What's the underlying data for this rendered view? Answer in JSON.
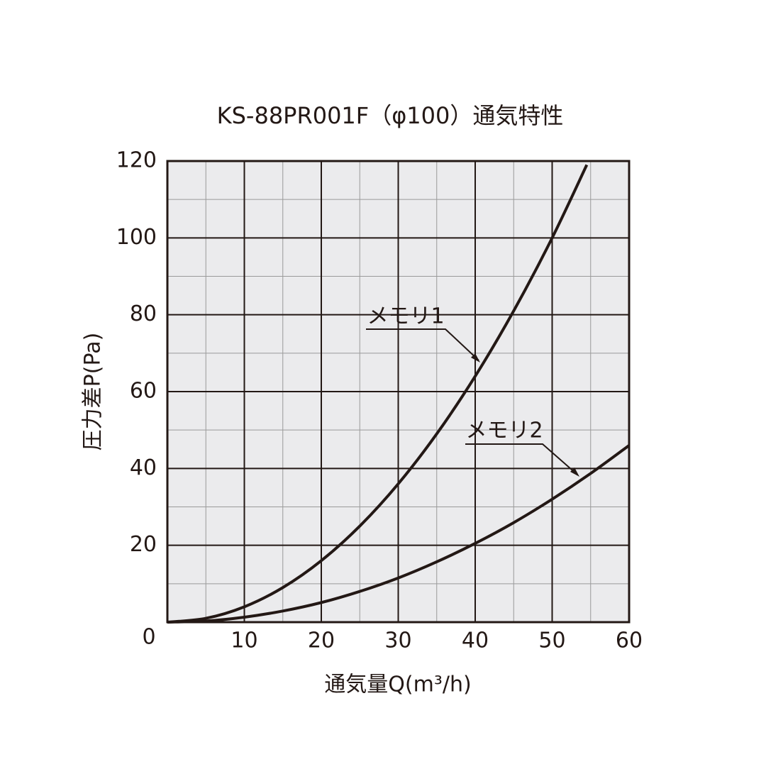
{
  "chart_data": {
    "type": "line",
    "title": "KS-88PR001F（φ100）通気特性",
    "x_label": "通気量Q(m³/h)",
    "y_label": "圧力差P(Pa)",
    "xlim": [
      0,
      60
    ],
    "ylim": [
      0,
      120
    ],
    "xticks": [
      0,
      10,
      20,
      30,
      40,
      50,
      60
    ],
    "yticks": [
      0,
      20,
      40,
      60,
      80,
      100,
      120
    ],
    "minor_xticks": [
      5,
      15,
      25,
      35,
      45,
      55
    ],
    "minor_yticks": [
      10,
      30,
      50,
      70,
      90,
      110
    ],
    "grid": true,
    "series": [
      {
        "name": "メモリ1",
        "color": "#231815",
        "x": [
          0,
          5,
          10,
          15,
          20,
          25,
          30,
          35,
          40,
          45,
          50,
          54.5
        ],
        "values": [
          0,
          1,
          4,
          9,
          16,
          25,
          36,
          49,
          64,
          81,
          100,
          119
        ]
      },
      {
        "name": "メモリ2",
        "color": "#231815",
        "x": [
          0,
          5,
          10,
          15,
          20,
          25,
          30,
          35,
          40,
          45,
          50,
          55,
          60
        ],
        "values": [
          0,
          0.3,
          1.3,
          2.9,
          5.1,
          8,
          11.5,
          15.7,
          20.5,
          25.9,
          32,
          38.7,
          46
        ]
      }
    ]
  }
}
